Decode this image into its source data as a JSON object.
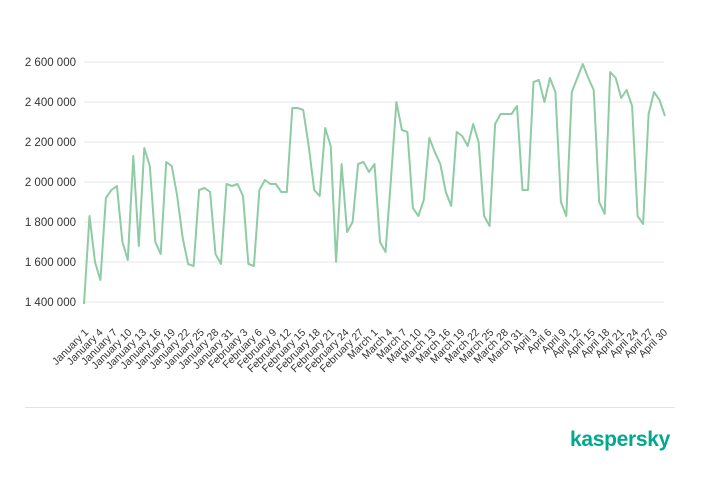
{
  "chart_data": {
    "type": "line",
    "title": "",
    "xlabel": "",
    "ylabel": "",
    "ylim": [
      1400000,
      2600000
    ],
    "y_ticks": [
      1400000,
      1600000,
      1800000,
      2000000,
      2200000,
      2400000,
      2600000
    ],
    "y_tick_labels": [
      "1 400 000",
      "1 600 000",
      "1 800 000",
      "2 000 000",
      "2 200 000",
      "2 400 000",
      "2 600 000"
    ],
    "grid": "horizontal",
    "legend": "none",
    "line_color": "#8FCBA5",
    "x_tick_labels": [
      "January 1",
      "January 4",
      "January 7",
      "January 10",
      "January 13",
      "January 16",
      "January 19",
      "January 22",
      "January 25",
      "January 28",
      "January 31",
      "February 3",
      "February 6",
      "February 9",
      "February 12",
      "February 15",
      "February 18",
      "February 21",
      "February 24",
      "February 27",
      "March 1",
      "March 4",
      "March 7",
      "March 10",
      "March 13",
      "March 16",
      "March 19",
      "March 22",
      "March 25",
      "March 28",
      "March 31",
      "April 3",
      "April 6",
      "April 9",
      "April 12",
      "April 15",
      "April 18",
      "April 21",
      "April 24",
      "April 27",
      "April 30"
    ],
    "values": [
      1390000,
      1830000,
      1600000,
      1510000,
      1920000,
      1960000,
      1980000,
      1700000,
      1610000,
      2130000,
      1680000,
      2170000,
      2080000,
      1700000,
      1640000,
      2100000,
      2080000,
      1930000,
      1720000,
      1590000,
      1580000,
      1960000,
      1970000,
      1950000,
      1640000,
      1590000,
      1990000,
      1980000,
      1990000,
      1930000,
      1590000,
      1580000,
      1960000,
      2010000,
      1990000,
      1990000,
      1950000,
      1950000,
      2370000,
      2370000,
      2360000,
      2180000,
      1960000,
      1930000,
      2270000,
      2180000,
      1600000,
      2090000,
      1750000,
      1800000,
      2090000,
      2100000,
      2050000,
      2090000,
      1700000,
      1650000,
      2010000,
      2400000,
      2260000,
      2250000,
      1870000,
      1830000,
      1910000,
      2220000,
      2150000,
      2090000,
      1950000,
      1880000,
      2250000,
      2230000,
      2180000,
      2290000,
      2200000,
      1830000,
      1780000,
      2290000,
      2340000,
      2340000,
      2340000,
      2380000,
      1960000,
      1960000,
      2500000,
      2510000,
      2400000,
      2520000,
      2450000,
      1900000,
      1830000,
      2450000,
      2520000,
      2590000,
      2520000,
      2460000,
      1900000,
      1840000,
      2550000,
      2520000,
      2420000,
      2460000,
      2380000,
      1830000,
      1790000,
      2340000,
      2450000,
      2410000,
      2330000
    ]
  },
  "branding": {
    "logo_text": "kaspersky",
    "logo_color": "#00A88E"
  }
}
